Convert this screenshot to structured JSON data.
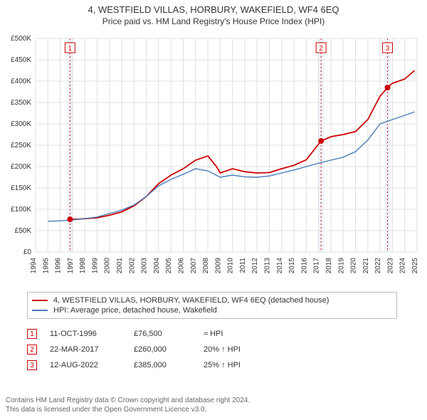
{
  "title": "4, WESTFIELD VILLAS, HORBURY, WAKEFIELD, WF4 6EQ",
  "subtitle": "Price paid vs. HM Land Registry's House Price Index (HPI)",
  "chart": {
    "type": "line",
    "background_color": "#ffffff",
    "grid_color": "#e0e0e0",
    "marker_band_color": "#eef3fb",
    "xlim": [
      1994,
      2025
    ],
    "ylim": [
      0,
      500000
    ],
    "ytick_step": 50000,
    "yticks": [
      "£0",
      "£50K",
      "£100K",
      "£150K",
      "£200K",
      "£250K",
      "£300K",
      "£350K",
      "£400K",
      "£450K",
      "£500K"
    ],
    "xticks": [
      1994,
      1995,
      1996,
      1997,
      1998,
      1999,
      2000,
      2001,
      2002,
      2003,
      2004,
      2005,
      2006,
      2007,
      2008,
      2009,
      2010,
      2011,
      2012,
      2013,
      2014,
      2015,
      2016,
      2017,
      2018,
      2019,
      2020,
      2021,
      2022,
      2023,
      2024,
      2025
    ],
    "series": [
      {
        "name": "price_paid",
        "label": "4, WESTFIELD VILLAS, HORBURY, WAKEFIELD, WF4 6EQ (detached house)",
        "color": "#cc0000",
        "line_width": 1.8,
        "points": [
          [
            1996.8,
            76500
          ],
          [
            1997.5,
            77000
          ],
          [
            1998,
            78000
          ],
          [
            1999,
            80000
          ],
          [
            2000,
            86000
          ],
          [
            2001,
            94000
          ],
          [
            2002,
            108000
          ],
          [
            2003,
            130000
          ],
          [
            2004,
            160000
          ],
          [
            2005,
            180000
          ],
          [
            2006,
            195000
          ],
          [
            2007,
            215000
          ],
          [
            2008,
            225000
          ],
          [
            2008.7,
            200000
          ],
          [
            2009,
            185000
          ],
          [
            2010,
            195000
          ],
          [
            2011,
            188000
          ],
          [
            2012,
            185000
          ],
          [
            2013,
            186000
          ],
          [
            2014,
            195000
          ],
          [
            2015,
            203000
          ],
          [
            2016,
            216000
          ],
          [
            2017.2,
            260000
          ],
          [
            2018,
            270000
          ],
          [
            2019,
            275000
          ],
          [
            2020,
            282000
          ],
          [
            2021,
            310000
          ],
          [
            2022,
            365000
          ],
          [
            2022.6,
            385000
          ],
          [
            2023,
            395000
          ],
          [
            2024,
            405000
          ],
          [
            2024.8,
            425000
          ]
        ]
      },
      {
        "name": "hpi",
        "label": "HPI: Average price, detached house, Wakefield",
        "color": "#4a7ebb",
        "line_width": 1.4,
        "points": [
          [
            1995,
            72000
          ],
          [
            1996,
            73000
          ],
          [
            1997,
            75000
          ],
          [
            1998,
            78000
          ],
          [
            1999,
            82000
          ],
          [
            2000,
            90000
          ],
          [
            2001,
            98000
          ],
          [
            2002,
            110000
          ],
          [
            2003,
            130000
          ],
          [
            2004,
            155000
          ],
          [
            2005,
            170000
          ],
          [
            2006,
            182000
          ],
          [
            2007,
            195000
          ],
          [
            2008,
            190000
          ],
          [
            2009,
            175000
          ],
          [
            2010,
            180000
          ],
          [
            2011,
            176000
          ],
          [
            2012,
            175000
          ],
          [
            2013,
            178000
          ],
          [
            2014,
            185000
          ],
          [
            2015,
            192000
          ],
          [
            2016,
            200000
          ],
          [
            2017,
            208000
          ],
          [
            2018,
            215000
          ],
          [
            2019,
            222000
          ],
          [
            2020,
            235000
          ],
          [
            2021,
            262000
          ],
          [
            2022,
            300000
          ],
          [
            2023,
            310000
          ],
          [
            2024,
            320000
          ],
          [
            2024.8,
            328000
          ]
        ]
      }
    ],
    "markers": [
      {
        "n": "1",
        "x": 1996.8,
        "y": 76500,
        "color": "#cc0000"
      },
      {
        "n": "2",
        "x": 2017.2,
        "y": 260000,
        "color": "#cc0000"
      },
      {
        "n": "3",
        "x": 2022.6,
        "y": 385000,
        "color": "#cc0000"
      }
    ]
  },
  "legend": {
    "0": {
      "label": "4, WESTFIELD VILLAS, HORBURY, WAKEFIELD, WF4 6EQ (detached house)",
      "color": "#cc0000"
    },
    "1": {
      "label": "HPI: Average price, detached house, Wakefield",
      "color": "#4a7ebb"
    }
  },
  "events": [
    {
      "n": "1",
      "date": "11-OCT-1996",
      "price": "£76,500",
      "note": "≈ HPI",
      "color": "#cc0000"
    },
    {
      "n": "2",
      "date": "22-MAR-2017",
      "price": "£260,000",
      "note": "20% ↑ HPI",
      "color": "#cc0000"
    },
    {
      "n": "3",
      "date": "12-AUG-2022",
      "price": "£385,000",
      "note": "25% ↑ HPI",
      "color": "#cc0000"
    }
  ],
  "footer": {
    "line1": "Contains HM Land Registry data © Crown copyright and database right 2024.",
    "line2": "This data is licensed under the Open Government Licence v3.0."
  }
}
